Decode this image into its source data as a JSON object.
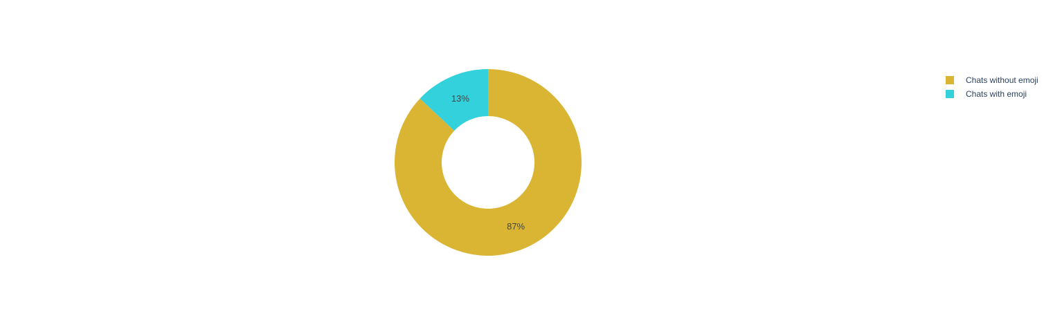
{
  "chart_data": {
    "type": "pie",
    "hole": true,
    "labels": [
      "Chats without emoji",
      "Chats with emoji"
    ],
    "values": [
      87,
      13
    ],
    "value_labels": [
      "87%",
      "13%"
    ],
    "colors": [
      "#d9b533",
      "#33d1dc"
    ],
    "legend_position": "top-right"
  },
  "legend": {
    "items": [
      {
        "label": "Chats without emoji",
        "color": "#d9b533"
      },
      {
        "label": "Chats with emoji",
        "color": "#33d1dc"
      }
    ]
  }
}
